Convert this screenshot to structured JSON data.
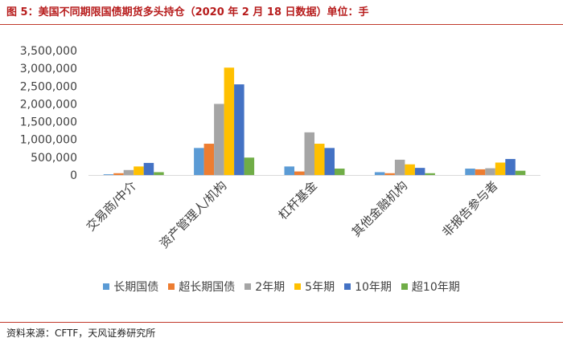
{
  "header": {
    "title": "图 5：美国不同期限国债期货多头持仓（2020 年 2 月 18 日数据）单位：手"
  },
  "footer": {
    "source": "资料来源：CFTF，天风证券研究所"
  },
  "chart_data": {
    "type": "bar",
    "title": "",
    "xlabel": "",
    "ylabel": "",
    "ylim": [
      0,
      3500000
    ],
    "yticks": [
      0,
      500000,
      1000000,
      1500000,
      2000000,
      2500000,
      3000000,
      3500000
    ],
    "ytick_labels": [
      "0",
      "500,000",
      "1,000,000",
      "1,500,000",
      "2,000,000",
      "2,500,000",
      "3,000,000",
      "3,500,000"
    ],
    "grid": false,
    "legend_position": "bottom",
    "categories": [
      "交易商/中介",
      "资产管理人/机构",
      "杠杆基金",
      "其他金融机构",
      "非报告参与者"
    ],
    "series": [
      {
        "name": "长期国债",
        "color": "#5B9BD5",
        "values": [
          20000,
          760000,
          240000,
          80000,
          180000
        ]
      },
      {
        "name": "超长期国债",
        "color": "#ED7D31",
        "values": [
          50000,
          880000,
          100000,
          50000,
          160000
        ]
      },
      {
        "name": "2年期",
        "color": "#A5A5A5",
        "values": [
          140000,
          2000000,
          1200000,
          430000,
          190000
        ]
      },
      {
        "name": "5年期",
        "color": "#FFC000",
        "values": [
          240000,
          3020000,
          880000,
          300000,
          350000
        ]
      },
      {
        "name": "10年期",
        "color": "#4472C4",
        "values": [
          340000,
          2550000,
          760000,
          200000,
          450000
        ]
      },
      {
        "name": "超10年期",
        "color": "#70AD47",
        "values": [
          80000,
          490000,
          180000,
          50000,
          120000
        ]
      }
    ]
  }
}
